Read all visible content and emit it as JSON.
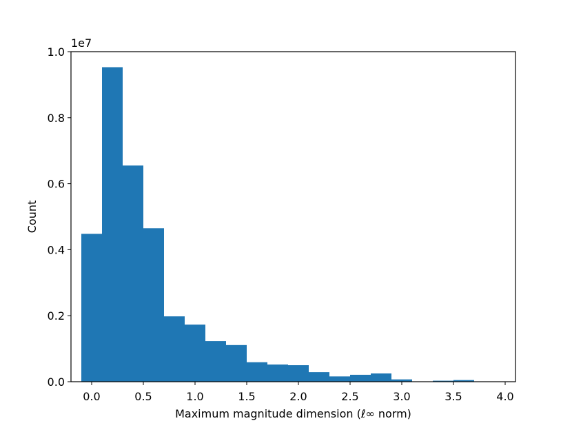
{
  "chart_data": {
    "type": "bar",
    "subtype": "histogram",
    "xlabel": "Maximum magnitude dimension (ℓ∞ norm)",
    "ylabel": "Count",
    "y_offset_label": "1e7",
    "xlim": [
      -0.2,
      4.1
    ],
    "ylim": [
      0,
      1.0
    ],
    "y_scale_factor": 10000000,
    "x_ticks": [
      {
        "value": 0.0,
        "label": "0.0"
      },
      {
        "value": 0.5,
        "label": "0.5"
      },
      {
        "value": 1.0,
        "label": "1.0"
      },
      {
        "value": 1.5,
        "label": "1.5"
      },
      {
        "value": 2.0,
        "label": "2.0"
      },
      {
        "value": 2.5,
        "label": "2.5"
      },
      {
        "value": 3.0,
        "label": "3.0"
      },
      {
        "value": 3.5,
        "label": "3.5"
      },
      {
        "value": 4.0,
        "label": "4.0"
      }
    ],
    "y_ticks": [
      {
        "value": 0.0,
        "label": "0.0"
      },
      {
        "value": 0.2,
        "label": "0.2"
      },
      {
        "value": 0.4,
        "label": "0.4"
      },
      {
        "value": 0.6,
        "label": "0.6"
      },
      {
        "value": 0.8,
        "label": "0.8"
      },
      {
        "value": 1.0,
        "label": "1.0"
      }
    ],
    "grid": false,
    "bar_color": "#1f77b4",
    "bins": [
      {
        "start": -0.1,
        "end": 0.1,
        "value": 0.448
      },
      {
        "start": 0.1,
        "end": 0.3,
        "value": 0.953
      },
      {
        "start": 0.3,
        "end": 0.5,
        "value": 0.655
      },
      {
        "start": 0.5,
        "end": 0.7,
        "value": 0.465
      },
      {
        "start": 0.7,
        "end": 0.9,
        "value": 0.198
      },
      {
        "start": 0.9,
        "end": 1.1,
        "value": 0.173
      },
      {
        "start": 1.1,
        "end": 1.3,
        "value": 0.123
      },
      {
        "start": 1.3,
        "end": 1.5,
        "value": 0.111
      },
      {
        "start": 1.5,
        "end": 1.7,
        "value": 0.059
      },
      {
        "start": 1.7,
        "end": 1.9,
        "value": 0.052
      },
      {
        "start": 1.9,
        "end": 2.1,
        "value": 0.05
      },
      {
        "start": 2.1,
        "end": 2.3,
        "value": 0.029
      },
      {
        "start": 2.3,
        "end": 2.5,
        "value": 0.016
      },
      {
        "start": 2.5,
        "end": 2.7,
        "value": 0.021
      },
      {
        "start": 2.7,
        "end": 2.9,
        "value": 0.025
      },
      {
        "start": 2.9,
        "end": 3.1,
        "value": 0.007
      },
      {
        "start": 3.1,
        "end": 3.3,
        "value": 0.001
      },
      {
        "start": 3.3,
        "end": 3.5,
        "value": 0.003
      },
      {
        "start": 3.5,
        "end": 3.7,
        "value": 0.005
      },
      {
        "start": 3.7,
        "end": 3.9,
        "value": 0.001
      }
    ]
  }
}
